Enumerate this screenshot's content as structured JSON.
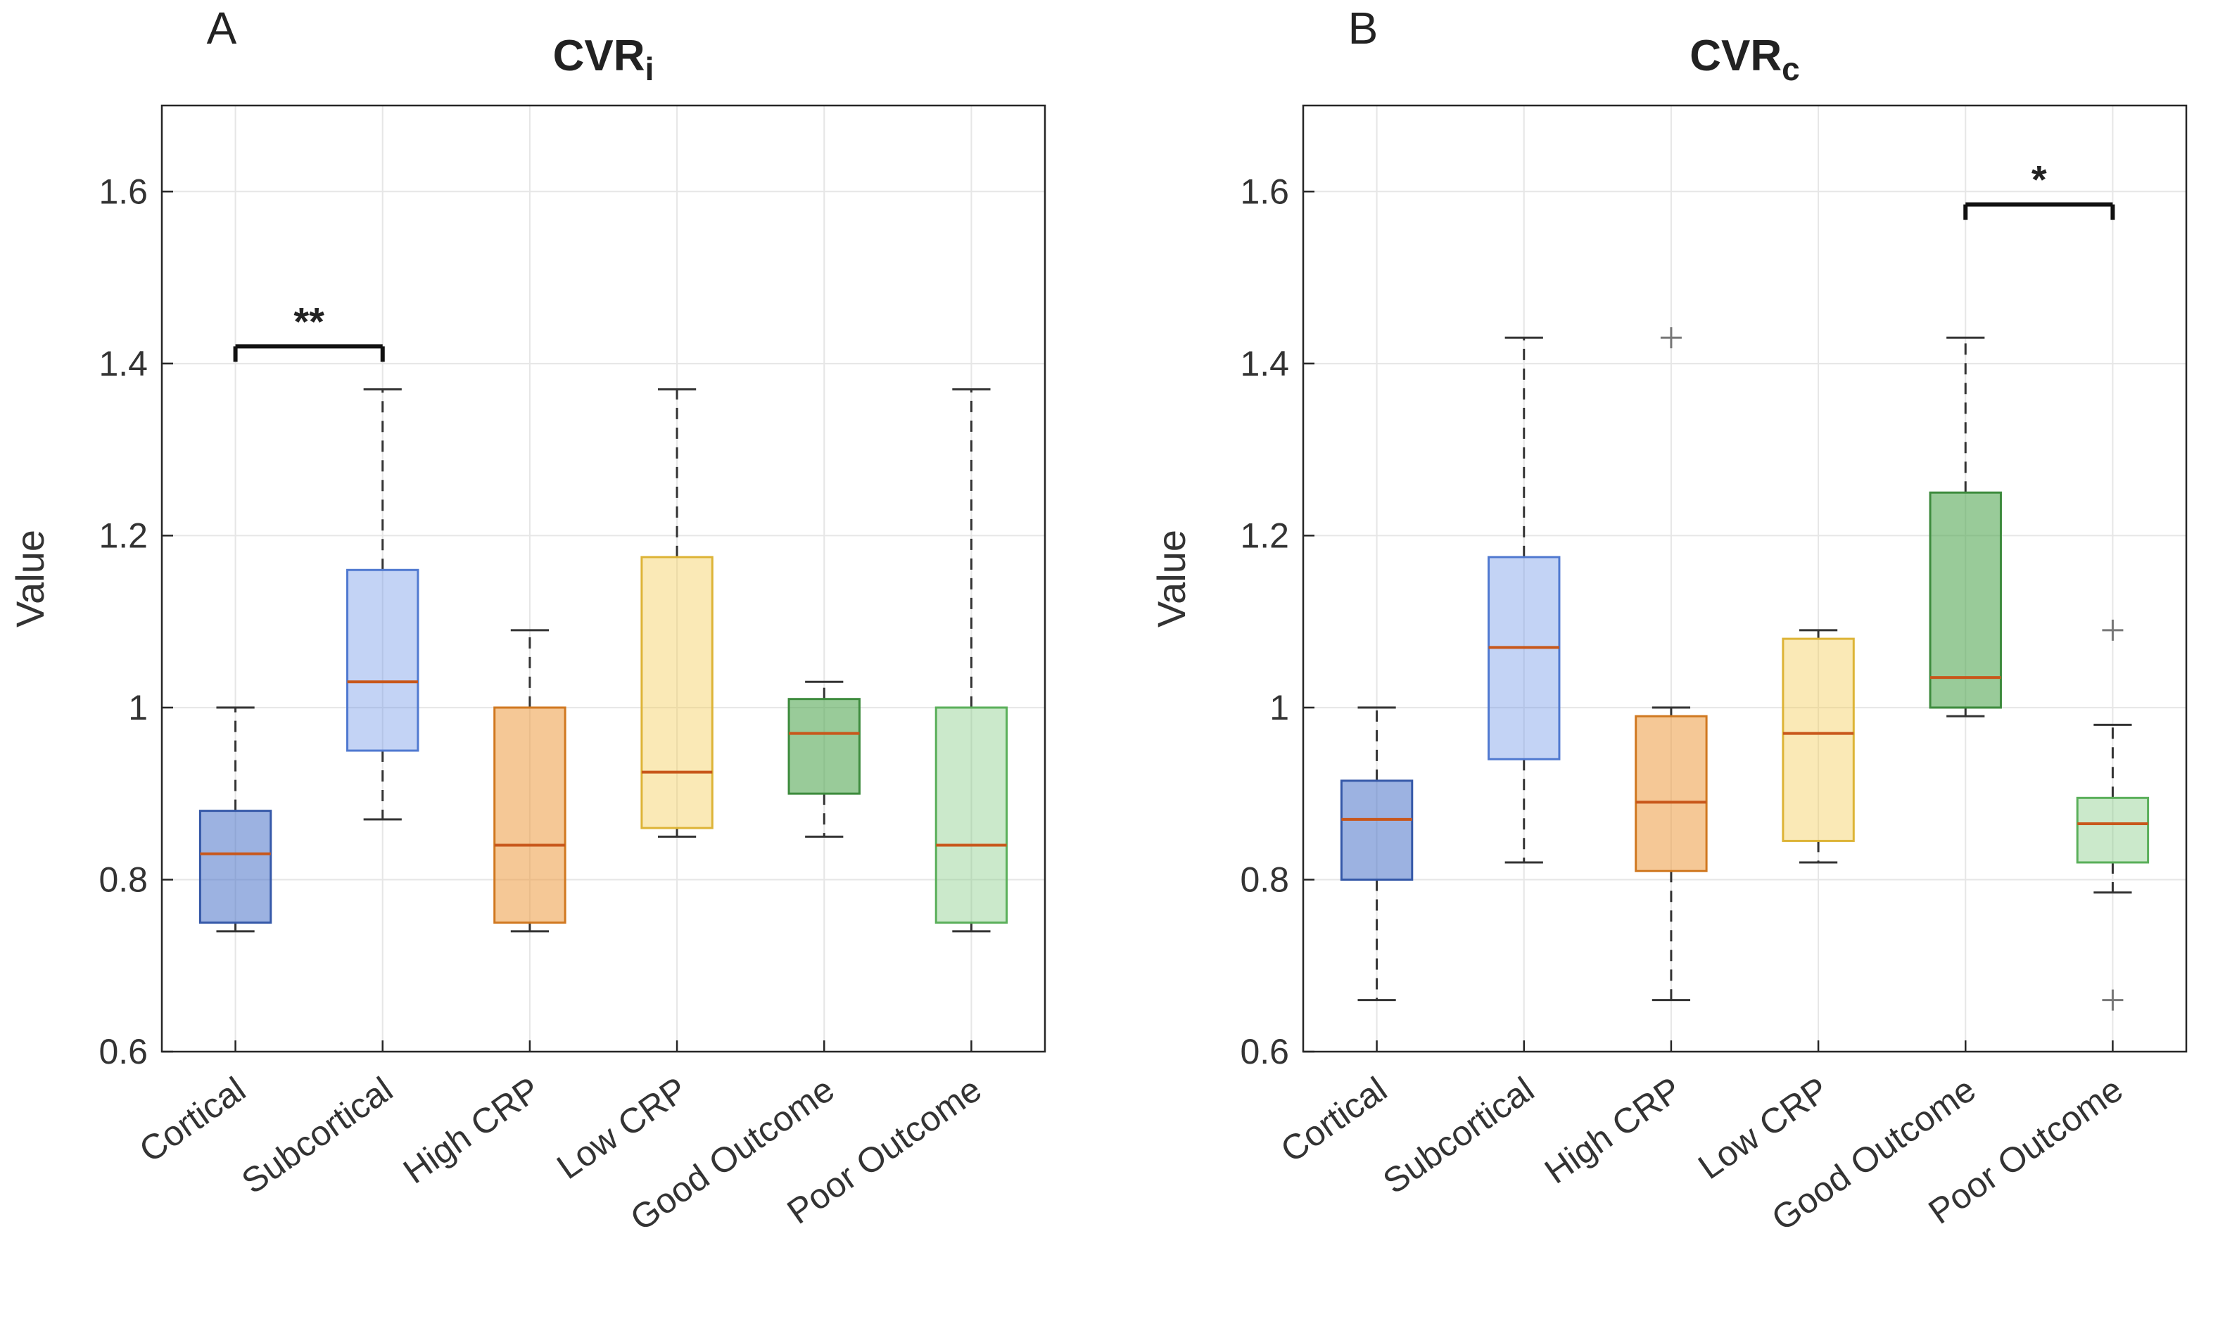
{
  "figure": {
    "background": "#ffffff",
    "axis_color": "#262626",
    "grid_color": "#e6e6e6",
    "whisker_color": "#333333",
    "outlier_color": "#777777",
    "bracket_color": "#111111",
    "median_color": "#c8571b"
  },
  "chart_data": [
    {
      "type": "boxplot",
      "panel_label": "A",
      "title_main": "CVR",
      "title_sub": "i",
      "ylabel": "Value",
      "ylim": [
        0.6,
        1.7
      ],
      "yticks": [
        0.6,
        0.8,
        1.0,
        1.2,
        1.4,
        1.6
      ],
      "ytick_labels": [
        "0.6",
        "0.8",
        "1",
        "1.2",
        "1.4",
        "1.6"
      ],
      "grid": true,
      "legend": "none",
      "categories": [
        "Cortical",
        "Subcortical",
        "High CRP",
        "Low CRP",
        "Good Outcome",
        "Poor Outcome"
      ],
      "boxes": [
        {
          "category": "Cortical",
          "whisker_low": 0.74,
          "q1": 0.75,
          "median": 0.83,
          "q3": 0.88,
          "whisker_high": 1.0,
          "outliers": [],
          "fill": "#4a72c8",
          "edge": "#3558a8",
          "fill_opacity": 0.55
        },
        {
          "category": "Subcortical",
          "whisker_low": 0.87,
          "q1": 0.95,
          "median": 1.03,
          "q3": 1.16,
          "whisker_high": 1.37,
          "outliers": [],
          "fill": "#6f97e6",
          "edge": "#5079d0",
          "fill_opacity": 0.42
        },
        {
          "category": "High CRP",
          "whisker_low": 0.74,
          "q1": 0.75,
          "median": 0.84,
          "q3": 1.0,
          "whisker_high": 1.09,
          "outliers": [],
          "fill": "#ed9b40",
          "edge": "#d07820",
          "fill_opacity": 0.55
        },
        {
          "category": "Low CRP",
          "whisker_low": 0.85,
          "q1": 0.86,
          "median": 0.925,
          "q3": 1.175,
          "whisker_high": 1.37,
          "outliers": [],
          "fill": "#f3cf5e",
          "edge": "#ddb437",
          "fill_opacity": 0.45
        },
        {
          "category": "Good Outcome",
          "whisker_low": 0.85,
          "q1": 0.9,
          "median": 0.97,
          "q3": 1.01,
          "whisker_high": 1.03,
          "outliers": [],
          "fill": "#55a855",
          "edge": "#3d8b3d",
          "fill_opacity": 0.6
        },
        {
          "category": "Poor Outcome",
          "whisker_low": 0.74,
          "q1": 0.75,
          "median": 0.84,
          "q3": 1.0,
          "whisker_high": 1.37,
          "outliers": [],
          "fill": "#7cc87c",
          "edge": "#5aaf5a",
          "fill_opacity": 0.4
        }
      ],
      "significance": [
        {
          "from": 0,
          "to": 1,
          "y": 1.42,
          "label": "**"
        }
      ]
    },
    {
      "type": "boxplot",
      "panel_label": "B",
      "title_main": "CVR",
      "title_sub": "c",
      "ylabel": "Value",
      "ylim": [
        0.6,
        1.7
      ],
      "yticks": [
        0.6,
        0.8,
        1.0,
        1.2,
        1.4,
        1.6
      ],
      "ytick_labels": [
        "0.6",
        "0.8",
        "1",
        "1.2",
        "1.4",
        "1.6"
      ],
      "grid": true,
      "legend": "none",
      "categories": [
        "Cortical",
        "Subcortical",
        "High CRP",
        "Low CRP",
        "Good Outcome",
        "Poor Outcome"
      ],
      "boxes": [
        {
          "category": "Cortical",
          "whisker_low": 0.66,
          "q1": 0.8,
          "median": 0.87,
          "q3": 0.915,
          "whisker_high": 1.0,
          "outliers": [],
          "fill": "#4a72c8",
          "edge": "#3558a8",
          "fill_opacity": 0.55
        },
        {
          "category": "Subcortical",
          "whisker_low": 0.82,
          "q1": 0.94,
          "median": 1.07,
          "q3": 1.175,
          "whisker_high": 1.43,
          "outliers": [],
          "fill": "#6f97e6",
          "edge": "#5079d0",
          "fill_opacity": 0.42
        },
        {
          "category": "High CRP",
          "whisker_low": 0.66,
          "q1": 0.81,
          "median": 0.89,
          "q3": 0.99,
          "whisker_high": 1.0,
          "outliers": [
            1.43
          ],
          "fill": "#ed9b40",
          "edge": "#d07820",
          "fill_opacity": 0.55
        },
        {
          "category": "Low CRP",
          "whisker_low": 0.82,
          "q1": 0.845,
          "median": 0.97,
          "q3": 1.08,
          "whisker_high": 1.09,
          "outliers": [],
          "fill": "#f3cf5e",
          "edge": "#ddb437",
          "fill_opacity": 0.45
        },
        {
          "category": "Good Outcome",
          "whisker_low": 0.99,
          "q1": 1.0,
          "median": 1.035,
          "q3": 1.25,
          "whisker_high": 1.43,
          "outliers": [],
          "fill": "#55a855",
          "edge": "#3d8b3d",
          "fill_opacity": 0.6
        },
        {
          "category": "Poor Outcome",
          "whisker_low": 0.785,
          "q1": 0.82,
          "median": 0.865,
          "q3": 0.895,
          "whisker_high": 0.98,
          "outliers": [
            1.09,
            0.66
          ],
          "fill": "#7cc87c",
          "edge": "#5aaf5a",
          "fill_opacity": 0.4
        }
      ],
      "significance": [
        {
          "from": 4,
          "to": 5,
          "y": 1.585,
          "label": "*"
        }
      ]
    }
  ]
}
